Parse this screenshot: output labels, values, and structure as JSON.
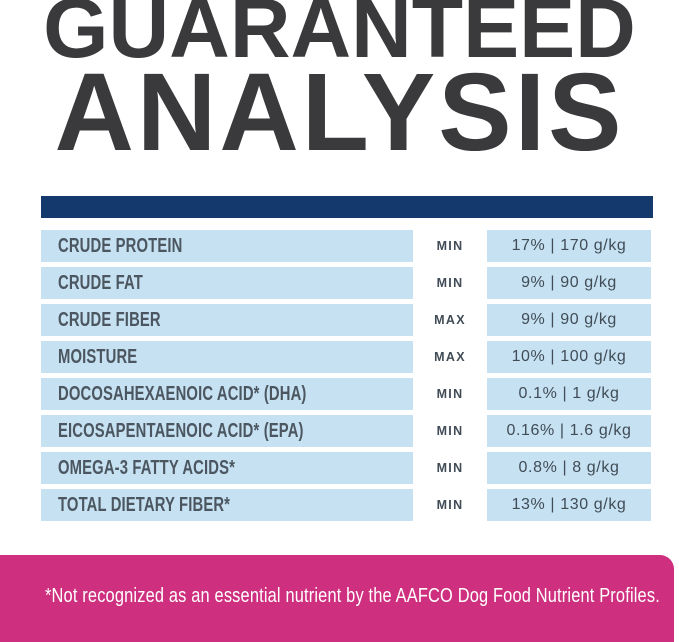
{
  "title": {
    "line1": "GUARANTEED",
    "line2": "ANALYSIS"
  },
  "colors": {
    "title_text": "#3a3a3c",
    "divider_navy": "#143a6d",
    "cell_light_blue": "#c5e1f2",
    "label_text": "#4c5660",
    "value_text": "#414c56",
    "footnote_pink": "#ce2f7e",
    "footnote_text": "#ffffff"
  },
  "table": {
    "rows": [
      {
        "label": "CRUDE PROTEIN",
        "basis": "MIN",
        "value": "17% | 170 g/kg"
      },
      {
        "label": "CRUDE FAT",
        "basis": "MIN",
        "value": "9% | 90 g/kg"
      },
      {
        "label": "CRUDE FIBER",
        "basis": "MAX",
        "value": "9% | 90 g/kg"
      },
      {
        "label": "MOISTURE",
        "basis": "MAX",
        "value": "10% | 100 g/kg"
      },
      {
        "label": "DOCOSAHEXAENOIC ACID* (DHA)",
        "basis": "MIN",
        "value": "0.1% | 1 g/kg"
      },
      {
        "label": "EICOSAPENTAENOIC ACID* (EPA)",
        "basis": "MIN",
        "value": "0.16% | 1.6 g/kg"
      },
      {
        "label": "OMEGA-3 FATTY ACIDS*",
        "basis": "MIN",
        "value": "0.8% | 8 g/kg"
      },
      {
        "label": "TOTAL DIETARY FIBER*",
        "basis": "MIN",
        "value": "13% | 130 g/kg"
      }
    ]
  },
  "footnote": {
    "text": "*Not recognized as an essential nutrient by the AAFCO Dog Food Nutrient Profiles."
  }
}
